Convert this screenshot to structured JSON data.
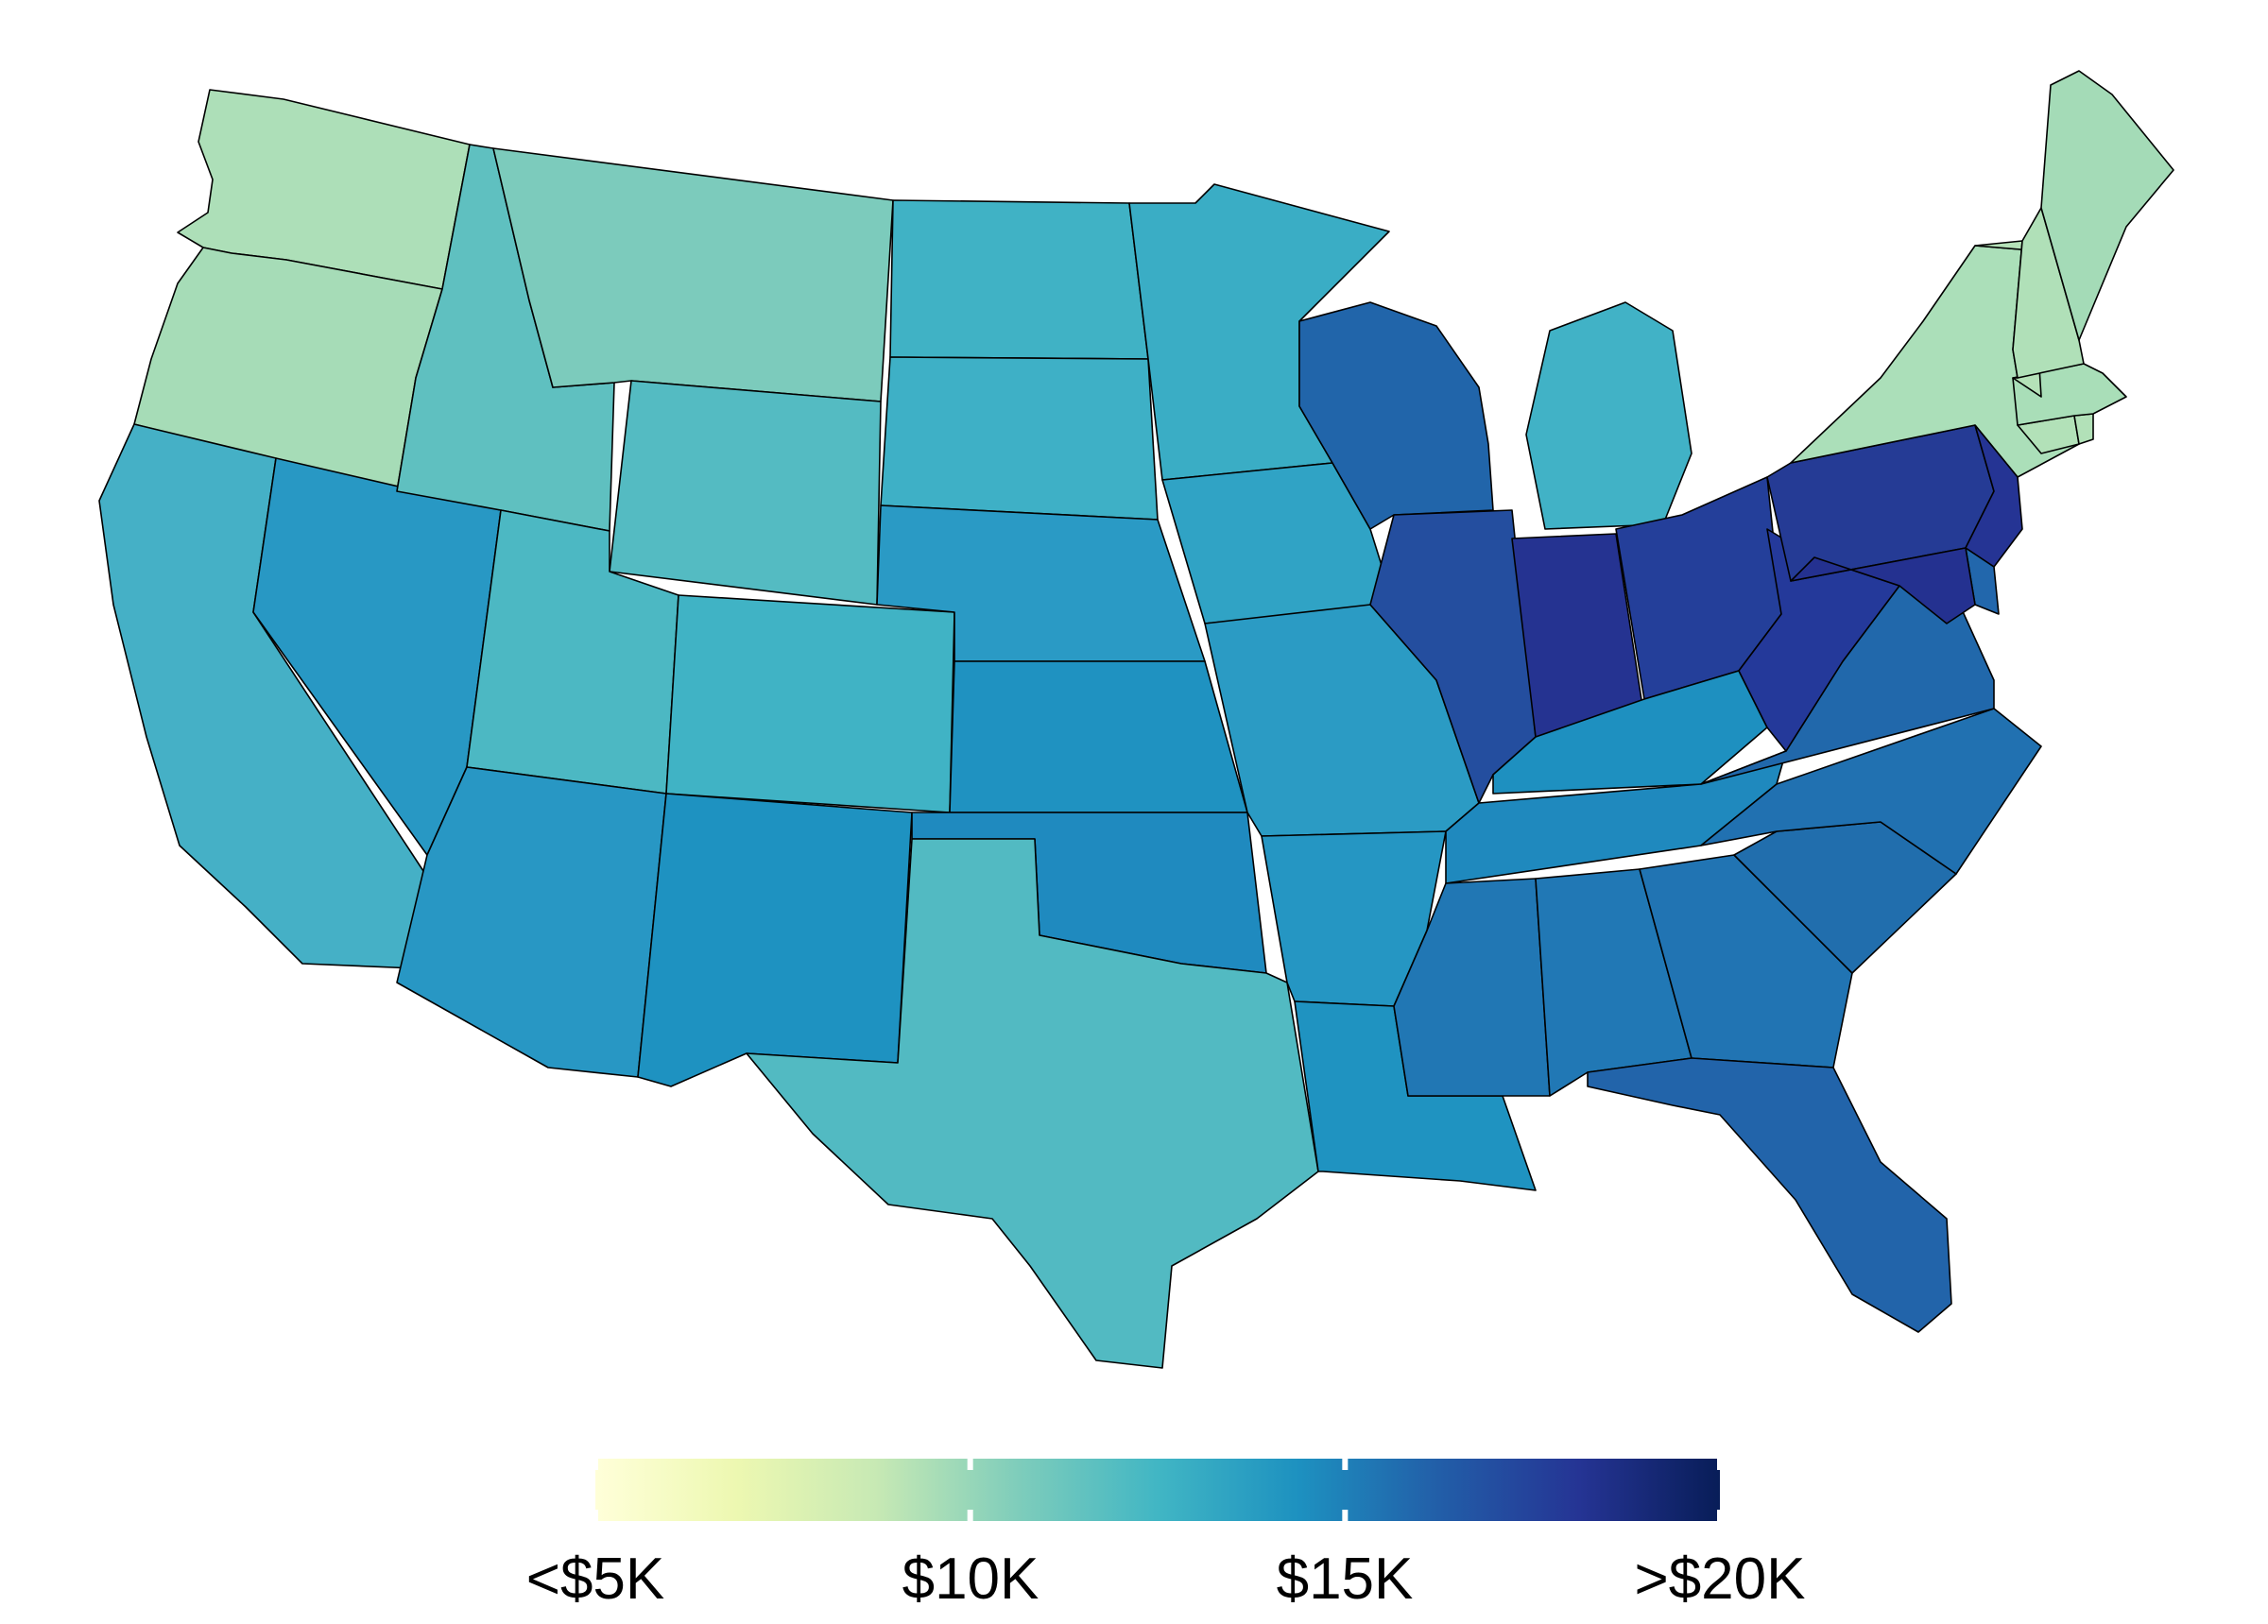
{
  "legend": {
    "labels": [
      "<$5K",
      "$10K",
      "$15K",
      ">$20K"
    ],
    "gradient_stops": [
      "#ffffd9",
      "#edf8b1",
      "#c7e9b4",
      "#7fcdbb",
      "#41b6c4",
      "#1d91c0",
      "#225ea8",
      "#253494",
      "#081d58"
    ],
    "tick_color": "#ffffff"
  },
  "map": {
    "border_color": "#000000",
    "states": [
      {
        "name": "WA",
        "color": "#addfb8"
      },
      {
        "name": "OR",
        "color": "#a6dcb7"
      },
      {
        "name": "CA",
        "color": "#45b0c6"
      },
      {
        "name": "NV",
        "color": "#2898c4"
      },
      {
        "name": "ID",
        "color": "#5fc0c0"
      },
      {
        "name": "MT",
        "color": "#7ccbbc"
      },
      {
        "name": "WY",
        "color": "#54bbc2"
      },
      {
        "name": "UT",
        "color": "#4cb8c3"
      },
      {
        "name": "CO",
        "color": "#40b3c5"
      },
      {
        "name": "AZ",
        "color": "#2897c4"
      },
      {
        "name": "NM",
        "color": "#1e92c1"
      },
      {
        "name": "ND",
        "color": "#40b2c5"
      },
      {
        "name": "SD",
        "color": "#3eb0c6"
      },
      {
        "name": "NE",
        "color": "#2a9ac5"
      },
      {
        "name": "KS",
        "color": "#1f92c1"
      },
      {
        "name": "OK",
        "color": "#1f8abf"
      },
      {
        "name": "TX",
        "color": "#52bac2"
      },
      {
        "name": "MN",
        "color": "#3aadc5"
      },
      {
        "name": "IA",
        "color": "#30a3c5"
      },
      {
        "name": "MO",
        "color": "#2b9bc4"
      },
      {
        "name": "AR",
        "color": "#2596c3"
      },
      {
        "name": "LA",
        "color": "#1f93c1"
      },
      {
        "name": "WI",
        "color": "#2165aa"
      },
      {
        "name": "IL",
        "color": "#244e9f"
      },
      {
        "name": "MI",
        "color": "#41b2c6"
      },
      {
        "name": "IN",
        "color": "#253391"
      },
      {
        "name": "OH",
        "color": "#243f9a"
      },
      {
        "name": "KY",
        "color": "#1e90c0"
      },
      {
        "name": "TN",
        "color": "#1f89be"
      },
      {
        "name": "MS",
        "color": "#2177b4"
      },
      {
        "name": "AL",
        "color": "#2178b5"
      },
      {
        "name": "GA",
        "color": "#2174b3"
      },
      {
        "name": "FL",
        "color": "#2264aa"
      },
      {
        "name": "SC",
        "color": "#216ead"
      },
      {
        "name": "NC",
        "color": "#2171b1"
      },
      {
        "name": "VA",
        "color": "#2168ab"
      },
      {
        "name": "WV",
        "color": "#24399a"
      },
      {
        "name": "PA",
        "color": "#253b95"
      },
      {
        "name": "NY",
        "color": "#abdfb9"
      },
      {
        "name": "NJ",
        "color": "#253494"
      },
      {
        "name": "DE",
        "color": "#2267ac"
      },
      {
        "name": "MD",
        "color": "#243190"
      },
      {
        "name": "CT",
        "color": "#b2e1b8"
      },
      {
        "name": "RI",
        "color": "#b2e1b8"
      },
      {
        "name": "MA",
        "color": "#a9deb8"
      },
      {
        "name": "VT",
        "color": "#b5e2b8"
      },
      {
        "name": "NH",
        "color": "#b0e0b8"
      },
      {
        "name": "ME",
        "color": "#a4dbb7"
      }
    ]
  }
}
